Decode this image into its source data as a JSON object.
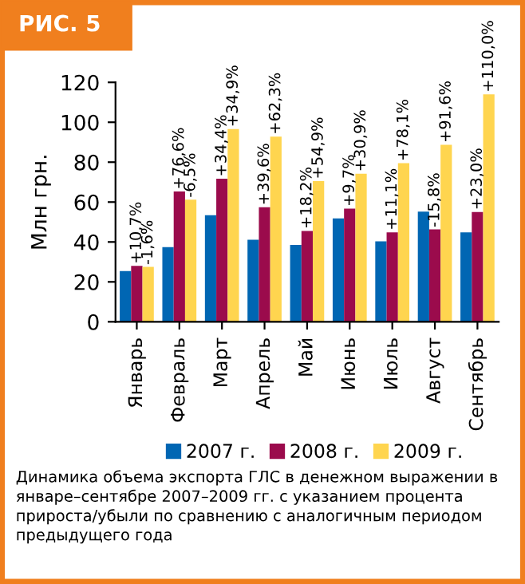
{
  "chart_data": {
    "type": "bar",
    "title": "РИС. 5",
    "ylabel": "Млн грн.",
    "categories": [
      "Январь",
      "Февраль",
      "Март",
      "Апрель",
      "Май",
      "Июнь",
      "Июль",
      "Август",
      "Сентябрь"
    ],
    "series": [
      {
        "name": "2007 г.",
        "color": "#0066b3",
        "values": [
          25.4,
          37.4,
          53.4,
          41.1,
          38.5,
          51.8,
          40.3,
          55.2,
          44.8
        ]
      },
      {
        "name": "2008 г.",
        "color": "#9b0b4c",
        "values": [
          28,
          65.3,
          71.7,
          57.4,
          45.5,
          56.7,
          44.8,
          46.3,
          55
        ]
      },
      {
        "name": "2009 г.",
        "color": "#ffd54f",
        "values": [
          27.5,
          61.2,
          96.6,
          92.8,
          70.5,
          74.2,
          79.5,
          88.7,
          114
        ]
      }
    ],
    "ylim": [
      0,
      120
    ],
    "yticks": [
      0,
      20,
      40,
      60,
      80,
      100,
      120
    ],
    "legend": "bottom",
    "grid": false,
    "annotations": [
      {
        "text": "+10,7%",
        "x": "Январь",
        "y": 28
      },
      {
        "text": "+76,6%",
        "x": "Февраль",
        "y": 65.3
      },
      {
        "text": "+34,4%",
        "x": "Март",
        "y": 71.7
      },
      {
        "text": "+39,6%",
        "x": "Апрель",
        "y": 57.4
      },
      {
        "text": "+18,2%",
        "x": "Май",
        "y": 45.5
      },
      {
        "text": "+9,7%",
        "x": "Июнь",
        "y": 56.7
      },
      {
        "text": "+11,1%",
        "x": "Июль",
        "y": 44.8
      },
      {
        "text": "-15,8%",
        "x": "Август",
        "y": 46.3
      },
      {
        "text": "+23,0%",
        "x": "Сентябрь",
        "y": 55
      },
      {
        "text": "-1,6%",
        "x": "Январь",
        "y": 27.5
      },
      {
        "text": "-6,5%",
        "x": "Февраль",
        "y": 61.2
      },
      {
        "text": "+34,9%",
        "x": "Март",
        "y": 96.6
      },
      {
        "text": "+62,3%",
        "x": "Апрель",
        "y": 92.8
      },
      {
        "text": "+54,9%",
        "x": "Май",
        "y": 70.5
      },
      {
        "text": "+30,9%",
        "x": "Июнь",
        "y": 74.2
      },
      {
        "text": "+78,1%",
        "x": "Июль",
        "y": 79.5
      },
      {
        "text": "+91,6%",
        "x": "Август",
        "y": 88.7
      },
      {
        "text": "+110,0%",
        "x": "Сентябрь",
        "y": 114
      },
      "Динамика объема экспорта ГЛС в денежном выражении в январе–сентябре 2007–2009 гг. с указанием процента прироста/убыли по сравнению с аналогичным периодом предыдущего года"
    ]
  }
}
